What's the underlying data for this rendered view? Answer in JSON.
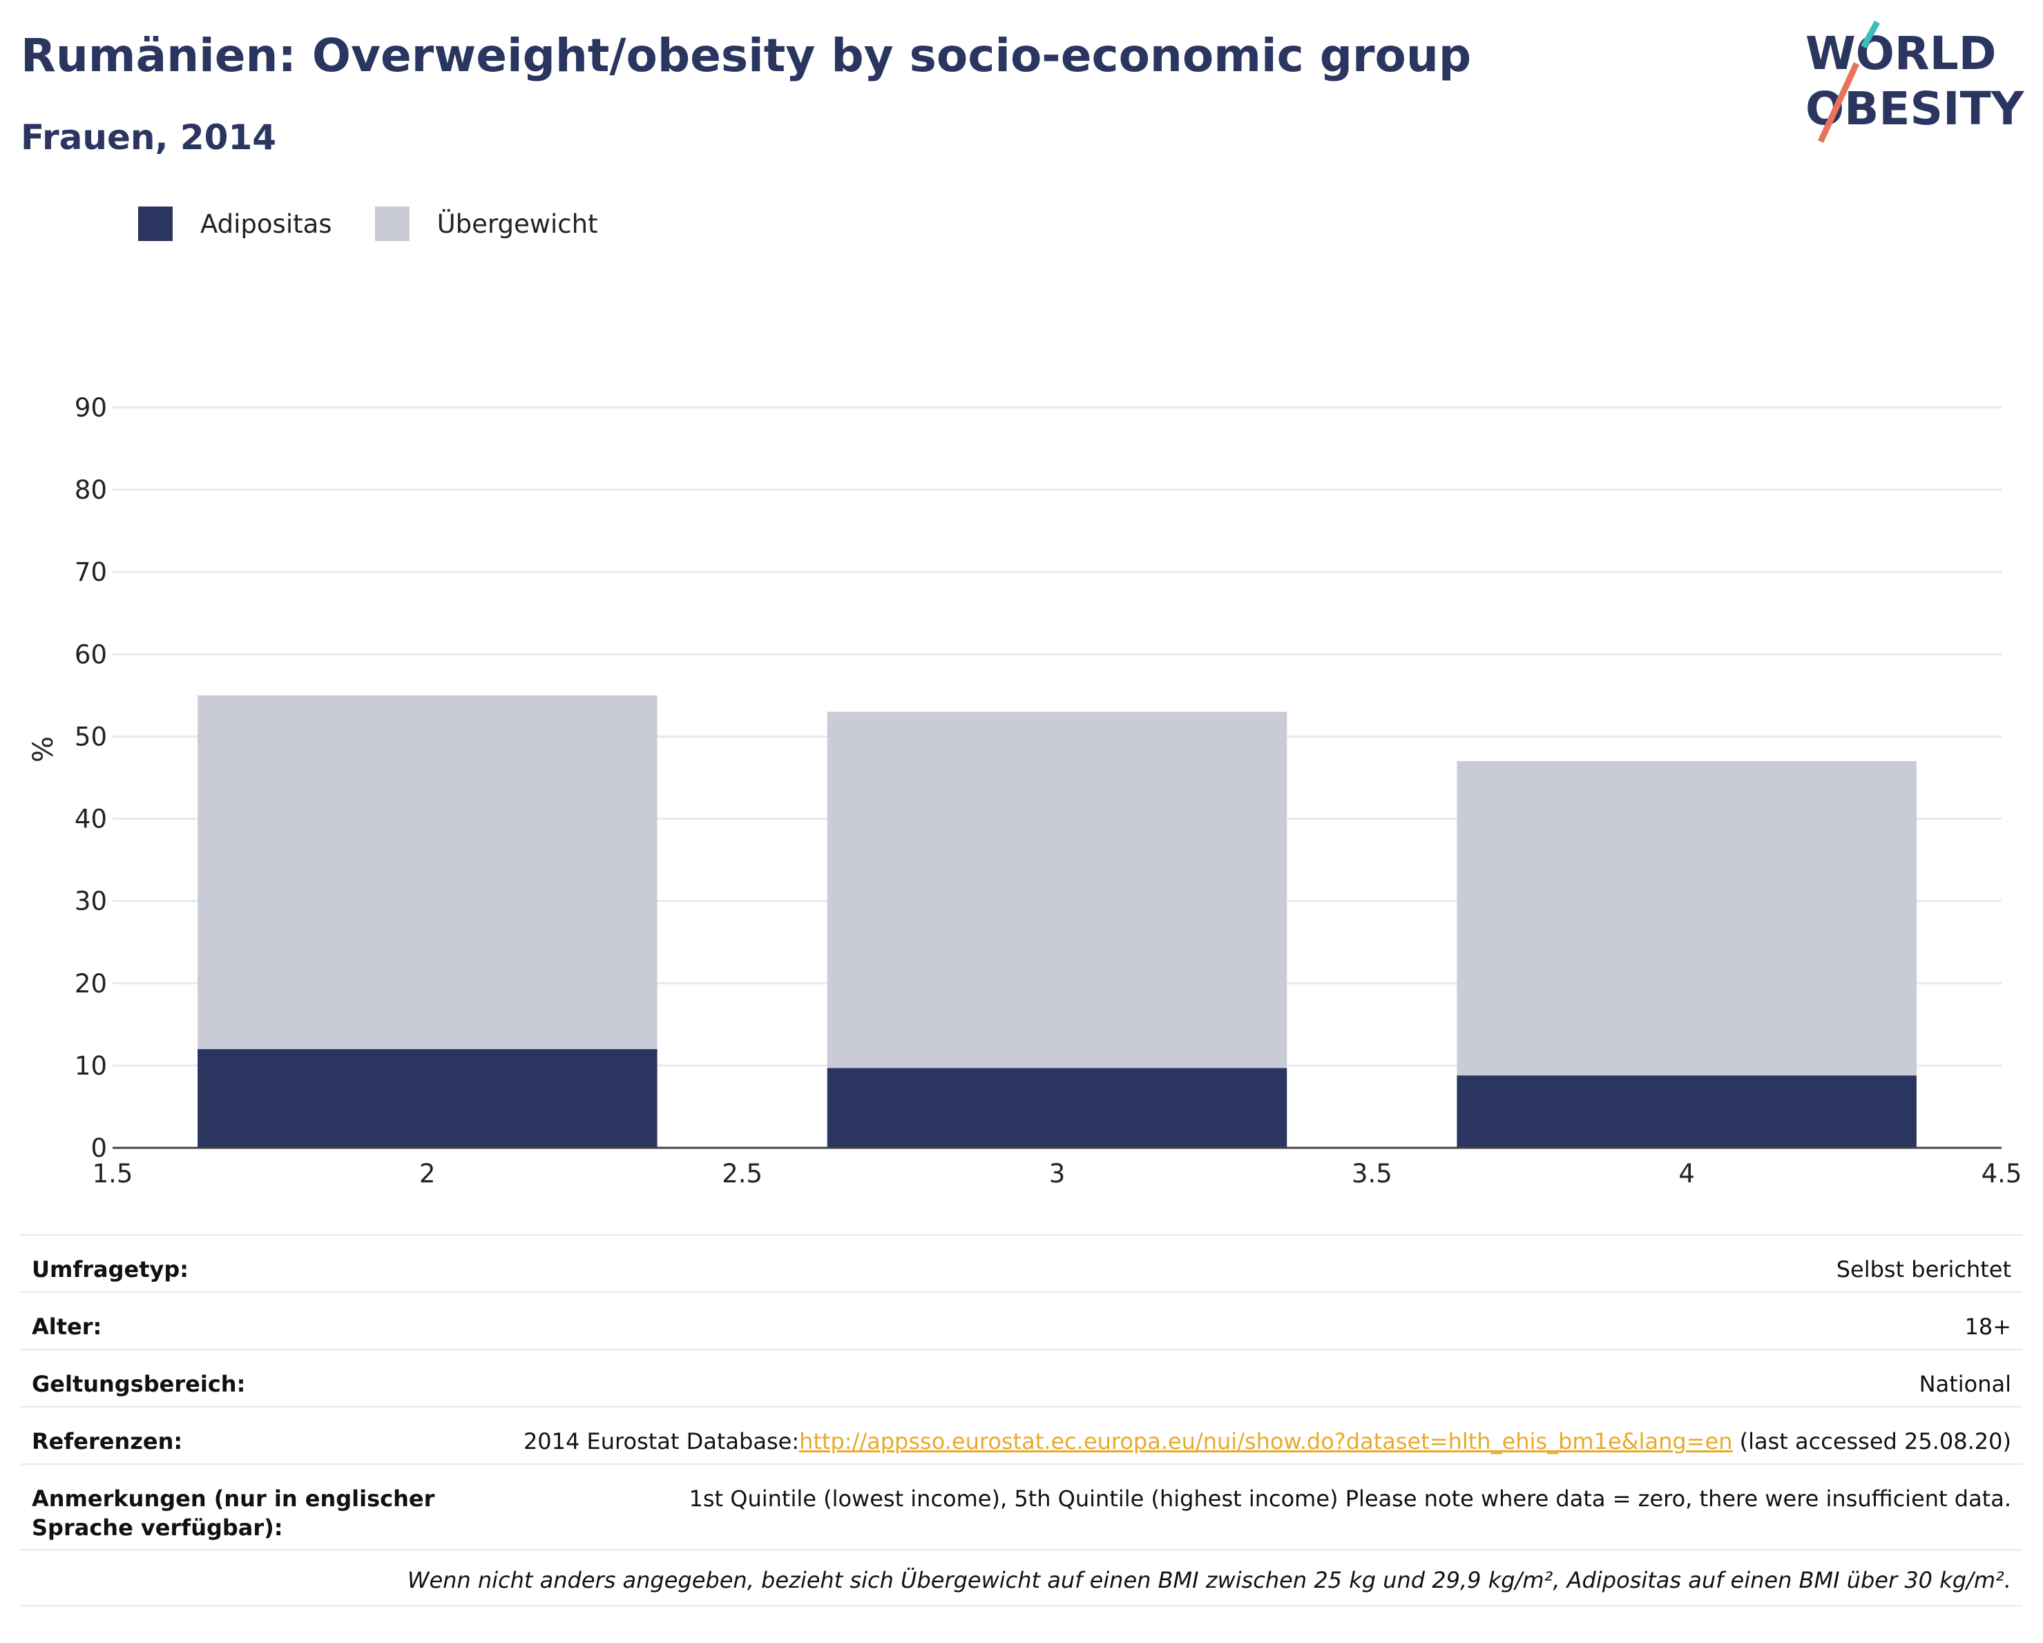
{
  "header": {
    "title": "Rumänien: Overweight/obesity by socio-economic group",
    "subtitle": "Frauen, 2014"
  },
  "logo": {
    "line1": "WORLD",
    "line2": "OBESITY",
    "accent_colors": [
      "#3bbdb9",
      "#e8735a"
    ]
  },
  "colors": {
    "obesity": "#2a3560",
    "overweight": "#c9ccd7",
    "grid": "#e8e9ef",
    "link": "#e8a92a"
  },
  "chart_data": {
    "type": "bar",
    "stacked": true,
    "x": [
      2,
      3,
      4
    ],
    "series": [
      {
        "name": "Adipositas",
        "values": [
          12,
          9.7,
          8.8
        ],
        "color": "#2a3560"
      },
      {
        "name": "Übergewicht",
        "values": [
          43,
          43.3,
          38.2
        ],
        "color": "#c9ccd7"
      }
    ],
    "totals": [
      55,
      53,
      47
    ],
    "xlim": [
      1.5,
      4.5
    ],
    "x_ticks": [
      "1.5",
      "2",
      "2.5",
      "3",
      "3.5",
      "4",
      "4.5"
    ],
    "x_tick_values": [
      1.5,
      2,
      2.5,
      3,
      3.5,
      4,
      4.5
    ],
    "ylim": [
      0,
      90
    ],
    "y_ticks": [
      "0",
      "10",
      "20",
      "30",
      "40",
      "50",
      "60",
      "70",
      "80",
      "90"
    ],
    "y_tick_values": [
      0,
      10,
      20,
      30,
      40,
      50,
      60,
      70,
      80,
      90
    ],
    "ylabel": "%",
    "xlabel": "",
    "grid": true,
    "legend_position": "top-left"
  },
  "info": {
    "rows": [
      {
        "key": "Umfragetyp:",
        "value": "Selbst berichtet"
      },
      {
        "key": "Alter:",
        "value": "18+"
      },
      {
        "key": "Geltungsbereich:",
        "value": "National"
      },
      {
        "key": "Referenzen:",
        "value_prefix": "2014 Eurostat Database:",
        "link": "http://appsso.eurostat.ec.europa.eu/nui/show.do?dataset=hlth_ehis_bm1e&lang=en",
        "value_suffix": " (last accessed 25.08.20)"
      },
      {
        "key": "Anmerkungen (nur in englischer Sprache verfügbar):",
        "value": "1st Quintile (lowest income), 5th Quintile (highest income) Please note where data = zero, there were insufficient data."
      }
    ],
    "footnote": "Wenn nicht anders angegeben, bezieht sich Übergewicht auf einen BMI zwischen 25 kg und 29,9 kg/m², Adipositas auf einen BMI über 30 kg/m²."
  }
}
